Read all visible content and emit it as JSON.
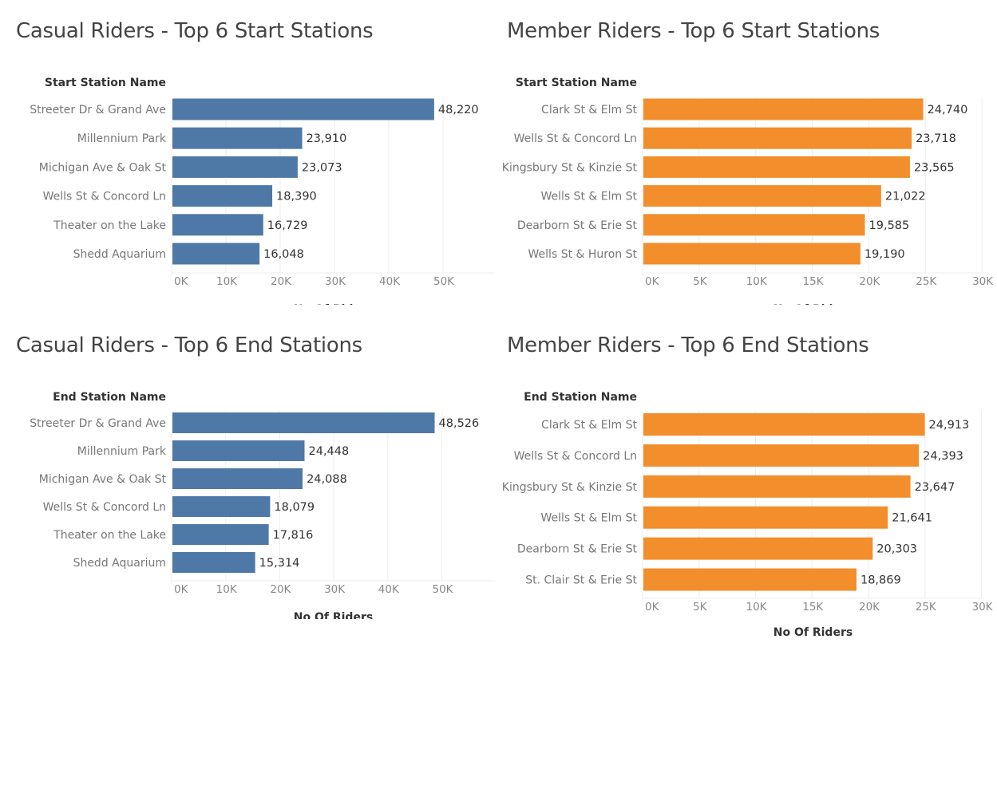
{
  "colors": {
    "casual": "#4e79a7",
    "member": "#f28e2b",
    "grid": "#eeeeee",
    "axis": "#cccccc"
  },
  "chart_data": [
    {
      "id": "casual-start",
      "type": "bar",
      "orientation": "horizontal",
      "title": "Casual Riders - Top 6 Start Stations",
      "category_header": "Start Station Name",
      "categories": [
        "Streeter Dr & Grand Ave",
        "Millennium Park",
        "Michigan Ave & Oak St",
        "Wells St & Concord Ln",
        "Theater on the Lake",
        "Shedd Aquarium"
      ],
      "values": [
        48220,
        23910,
        23073,
        18390,
        16729,
        16048
      ],
      "value_labels": [
        "48,220",
        "23,910",
        "23,073",
        "18,390",
        "16,729",
        "16,048"
      ],
      "xlabel": "No Of Riders",
      "xlim": [
        0,
        60000
      ],
      "ticks": [
        0,
        10000,
        20000,
        30000,
        40000,
        50000
      ],
      "tick_labels": [
        "0K",
        "10K",
        "20K",
        "30K",
        "40K",
        "50K"
      ],
      "color": "#4e79a7"
    },
    {
      "id": "member-start",
      "type": "bar",
      "orientation": "horizontal",
      "title": "Member Riders - Top 6 Start Stations",
      "category_header": "Start Station Name",
      "categories": [
        "Clark St & Elm St",
        "Wells St & Concord Ln",
        "Kingsbury St & Kinzie St",
        "Wells St & Elm St",
        "Dearborn St & Erie St",
        "Wells St & Huron St"
      ],
      "values": [
        24740,
        23718,
        23565,
        21022,
        19585,
        19190
      ],
      "value_labels": [
        "24,740",
        "23,718",
        "23,565",
        "21,022",
        "19,585",
        "19,190"
      ],
      "xlabel": "No Of Riders",
      "xlim": [
        0,
        30000
      ],
      "ticks": [
        0,
        5000,
        10000,
        15000,
        20000,
        25000,
        30000
      ],
      "tick_labels": [
        "0K",
        "5K",
        "10K",
        "15K",
        "20K",
        "25K",
        "30K"
      ],
      "color": "#f28e2b"
    },
    {
      "id": "casual-end",
      "type": "bar",
      "orientation": "horizontal",
      "title": "Casual Riders - Top 6 End Stations",
      "category_header": "End Station Name",
      "categories": [
        "Streeter Dr & Grand Ave",
        "Millennium Park",
        "Michigan Ave & Oak St",
        "Wells St & Concord Ln",
        "Theater on the Lake",
        "Shedd Aquarium"
      ],
      "values": [
        48526,
        24448,
        24088,
        18079,
        17816,
        15314
      ],
      "value_labels": [
        "48,526",
        "24,448",
        "24,088",
        "18,079",
        "17,816",
        "15,314"
      ],
      "xlabel": "No Of Riders",
      "xlim": [
        0,
        60000
      ],
      "ticks": [
        0,
        10000,
        20000,
        30000,
        40000,
        50000
      ],
      "tick_labels": [
        "0K",
        "10K",
        "20K",
        "30K",
        "40K",
        "50K"
      ],
      "color": "#4e79a7"
    },
    {
      "id": "member-end",
      "type": "bar",
      "orientation": "horizontal",
      "title": "Member Riders - Top 6 End Stations",
      "category_header": "End Station Name",
      "categories": [
        "Clark St & Elm St",
        "Wells St & Concord Ln",
        "Kingsbury St & Kinzie St",
        "Wells St & Elm St",
        "Dearborn St & Erie St",
        "St. Clair St & Erie St"
      ],
      "values": [
        24913,
        24393,
        23647,
        21641,
        20303,
        18869
      ],
      "value_labels": [
        "24,913",
        "24,393",
        "23,647",
        "21,641",
        "20,303",
        "18,869"
      ],
      "xlabel": "No Of Riders",
      "xlim": [
        0,
        30000
      ],
      "ticks": [
        0,
        5000,
        10000,
        15000,
        20000,
        25000,
        30000
      ],
      "tick_labels": [
        "0K",
        "5K",
        "10K",
        "15K",
        "20K",
        "25K",
        "30K"
      ],
      "color": "#f28e2b"
    }
  ]
}
